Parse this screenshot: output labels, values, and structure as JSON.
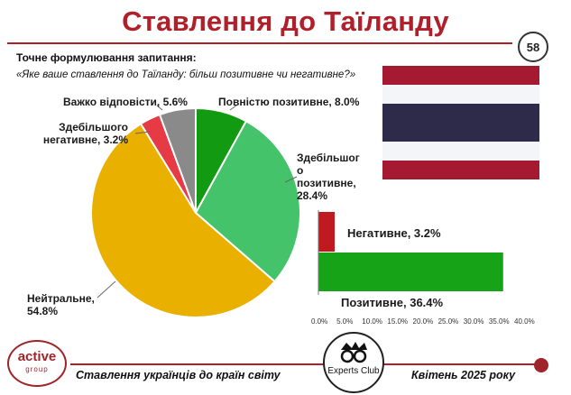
{
  "title": "Ставлення до Таїланду",
  "page_number": "58",
  "question_label": "Точне формулювання запитання:",
  "question_text": "«Яке ваше ставлення до Таїланду: більш позитивне чи негативне?»",
  "colors": {
    "accent": "#b0202a",
    "flag_red": "#a51931",
    "flag_white": "#f4f5f8",
    "flag_blue": "#2d2a4a"
  },
  "flag_icon": "thailand-flag",
  "chart_data": [
    {
      "type": "pie",
      "title": "",
      "labels": [
        "Повністю позитивне",
        "Здебільшого позитивне",
        "Нейтральне",
        "Здебільшого негативне",
        "Важко відповісти"
      ],
      "values": [
        8.0,
        28.4,
        54.8,
        3.2,
        5.6
      ],
      "colors": [
        "#129a12",
        "#45c36a",
        "#e9b000",
        "#e63a45",
        "#8a8a8a"
      ],
      "data_labels": [
        "Повністю позитивне, 8.0%",
        "Здебільшог о позитивне, 28.4%",
        "Нейтральне, 54.8%",
        "Здебільшого негативне, 3.2%",
        "Важко відповісти, 5.6%"
      ]
    },
    {
      "type": "bar",
      "orientation": "horizontal",
      "categories": [
        "Негативне",
        "Позитивне"
      ],
      "values": [
        3.2,
        36.4
      ],
      "colors": [
        "#c0191f",
        "#17a317"
      ],
      "data_labels": [
        "Негативне, 3.2%",
        "Позитивне, 36.4%"
      ],
      "xlim": [
        0,
        40
      ],
      "x_ticks": [
        "0.0%",
        "5.0%",
        "10.0%",
        "15.0%",
        "20.0%",
        "25.0%",
        "30.0%",
        "35.0%",
        "40.0%"
      ],
      "grid": false
    }
  ],
  "footer": {
    "left_text": "Ставлення українців до країн світу",
    "right_text": "Квітень 2025 року",
    "logo_left_word": "active",
    "logo_left_sub": "group",
    "logo_right_word": "Experts Club"
  }
}
